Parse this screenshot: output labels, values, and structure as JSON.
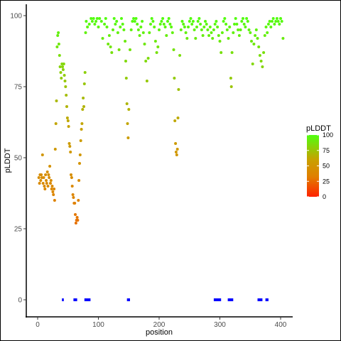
{
  "chart_data": {
    "type": "scatter",
    "xlabel": "position",
    "ylabel": "pLDDT",
    "xlim": [
      -10,
      412
    ],
    "ylim": [
      -5,
      102
    ],
    "xticks": [
      0,
      100,
      200,
      300,
      400
    ],
    "yticks": [
      0,
      25,
      50,
      75,
      100
    ],
    "grid": false,
    "legend": {
      "title": "pLDDT",
      "placement": "right",
      "ticks": [
        0,
        25,
        50,
        75,
        100
      ],
      "gradient": [
        "#ff2200",
        "#e08000",
        "#c8a000",
        "#50ff10"
      ]
    },
    "points_x_y": [
      [
        2,
        43
      ],
      [
        3,
        41
      ],
      [
        4,
        44
      ],
      [
        5,
        42
      ],
      [
        6,
        44
      ],
      [
        7,
        43
      ],
      [
        8,
        51
      ],
      [
        9,
        41
      ],
      [
        10,
        43
      ],
      [
        11,
        40
      ],
      [
        12,
        39
      ],
      [
        13,
        44
      ],
      [
        14,
        42
      ],
      [
        15,
        41
      ],
      [
        16,
        45
      ],
      [
        17,
        40
      ],
      [
        18,
        44
      ],
      [
        19,
        43
      ],
      [
        20,
        47
      ],
      [
        21,
        41
      ],
      [
        22,
        42
      ],
      [
        23,
        39
      ],
      [
        24,
        40
      ],
      [
        25,
        38
      ],
      [
        26,
        37
      ],
      [
        27,
        39
      ],
      [
        28,
        35
      ],
      [
        29,
        53
      ],
      [
        30,
        62
      ],
      [
        31,
        70
      ],
      [
        32,
        89
      ],
      [
        33,
        93
      ],
      [
        34,
        94
      ],
      [
        35,
        90
      ],
      [
        36,
        86
      ],
      [
        37,
        82
      ],
      [
        38,
        80
      ],
      [
        39,
        78
      ],
      [
        40,
        83
      ],
      [
        41,
        82
      ],
      [
        42,
        81
      ],
      [
        43,
        83
      ],
      [
        44,
        79
      ],
      [
        45,
        77
      ],
      [
        46,
        75
      ],
      [
        47,
        72
      ],
      [
        48,
        68
      ],
      [
        49,
        64
      ],
      [
        50,
        63
      ],
      [
        51,
        61
      ],
      [
        52,
        55
      ],
      [
        53,
        54
      ],
      [
        54,
        52
      ],
      [
        55,
        44
      ],
      [
        56,
        43
      ],
      [
        57,
        40
      ],
      [
        58,
        37
      ],
      [
        59,
        36
      ],
      [
        60,
        34
      ],
      [
        61,
        34
      ],
      [
        62,
        30
      ],
      [
        63,
        27
      ],
      [
        64,
        28
      ],
      [
        65,
        29
      ],
      [
        66,
        28
      ],
      [
        67,
        35
      ],
      [
        68,
        42
      ],
      [
        69,
        48
      ],
      [
        70,
        51
      ],
      [
        71,
        56
      ],
      [
        72,
        60
      ],
      [
        73,
        62
      ],
      [
        74,
        67
      ],
      [
        75,
        71
      ],
      [
        76,
        68
      ],
      [
        77,
        76
      ],
      [
        78,
        80
      ],
      [
        79,
        94
      ],
      [
        80,
        98
      ],
      [
        82,
        96
      ],
      [
        85,
        97
      ],
      [
        88,
        99
      ],
      [
        90,
        98
      ],
      [
        92,
        99
      ],
      [
        94,
        97
      ],
      [
        96,
        98
      ],
      [
        98,
        99
      ],
      [
        100,
        96
      ],
      [
        102,
        99
      ],
      [
        105,
        98
      ],
      [
        107,
        92
      ],
      [
        110,
        97
      ],
      [
        112,
        99
      ],
      [
        114,
        96
      ],
      [
        116,
        90
      ],
      [
        118,
        93
      ],
      [
        120,
        89
      ],
      [
        122,
        87
      ],
      [
        124,
        95
      ],
      [
        126,
        99
      ],
      [
        128,
        97
      ],
      [
        130,
        98
      ],
      [
        132,
        94
      ],
      [
        134,
        88
      ],
      [
        136,
        96
      ],
      [
        138,
        99
      ],
      [
        140,
        97
      ],
      [
        142,
        95
      ],
      [
        144,
        91
      ],
      [
        145,
        84
      ],
      [
        146,
        78
      ],
      [
        147,
        69
      ],
      [
        148,
        62
      ],
      [
        149,
        57
      ],
      [
        150,
        67
      ],
      [
        152,
        88
      ],
      [
        154,
        95
      ],
      [
        156,
        98
      ],
      [
        158,
        99
      ],
      [
        160,
        98
      ],
      [
        162,
        99
      ],
      [
        164,
        97
      ],
      [
        166,
        95
      ],
      [
        168,
        93
      ],
      [
        170,
        96
      ],
      [
        172,
        98
      ],
      [
        174,
        94
      ],
      [
        176,
        90
      ],
      [
        178,
        84
      ],
      [
        180,
        77
      ],
      [
        182,
        85
      ],
      [
        184,
        94
      ],
      [
        186,
        97
      ],
      [
        188,
        99
      ],
      [
        190,
        98
      ],
      [
        192,
        96
      ],
      [
        194,
        91
      ],
      [
        196,
        87
      ],
      [
        198,
        89
      ],
      [
        200,
        95
      ],
      [
        202,
        97
      ],
      [
        204,
        98
      ],
      [
        206,
        99
      ],
      [
        208,
        97
      ],
      [
        210,
        96
      ],
      [
        212,
        93
      ],
      [
        214,
        98
      ],
      [
        216,
        99
      ],
      [
        218,
        97
      ],
      [
        220,
        96
      ],
      [
        222,
        94
      ],
      [
        224,
        88
      ],
      [
        225,
        78
      ],
      [
        226,
        63
      ],
      [
        227,
        55
      ],
      [
        228,
        52
      ],
      [
        229,
        51
      ],
      [
        230,
        53
      ],
      [
        231,
        64
      ],
      [
        232,
        74
      ],
      [
        234,
        86
      ],
      [
        236,
        95
      ],
      [
        238,
        98
      ],
      [
        240,
        97
      ],
      [
        242,
        96
      ],
      [
        244,
        94
      ],
      [
        246,
        92
      ],
      [
        248,
        96
      ],
      [
        250,
        98
      ],
      [
        252,
        99
      ],
      [
        254,
        97
      ],
      [
        256,
        98
      ],
      [
        258,
        95
      ],
      [
        260,
        92
      ],
      [
        262,
        96
      ],
      [
        264,
        98
      ],
      [
        266,
        99
      ],
      [
        268,
        97
      ],
      [
        270,
        95
      ],
      [
        272,
        93
      ],
      [
        274,
        96
      ],
      [
        276,
        98
      ],
      [
        278,
        97
      ],
      [
        280,
        95
      ],
      [
        282,
        93
      ],
      [
        284,
        96
      ],
      [
        286,
        94
      ],
      [
        288,
        92
      ],
      [
        290,
        95
      ],
      [
        292,
        97
      ],
      [
        294,
        98
      ],
      [
        296,
        96
      ],
      [
        298,
        93
      ],
      [
        300,
        91
      ],
      [
        302,
        87
      ],
      [
        304,
        94
      ],
      [
        306,
        98
      ],
      [
        308,
        99
      ],
      [
        310,
        97
      ],
      [
        312,
        95
      ],
      [
        314,
        92
      ],
      [
        316,
        96
      ],
      [
        318,
        78
      ],
      [
        319,
        75
      ],
      [
        320,
        87
      ],
      [
        322,
        94
      ],
      [
        324,
        97
      ],
      [
        326,
        99
      ],
      [
        328,
        97
      ],
      [
        330,
        95
      ],
      [
        332,
        93
      ],
      [
        334,
        95
      ],
      [
        336,
        98
      ],
      [
        338,
        99
      ],
      [
        340,
        97
      ],
      [
        342,
        96
      ],
      [
        344,
        99
      ],
      [
        346,
        98
      ],
      [
        348,
        95
      ],
      [
        350,
        94
      ],
      [
        352,
        91
      ],
      [
        354,
        83
      ],
      [
        356,
        90
      ],
      [
        358,
        93
      ],
      [
        360,
        95
      ],
      [
        362,
        92
      ],
      [
        364,
        89
      ],
      [
        366,
        86
      ],
      [
        368,
        84
      ],
      [
        370,
        82
      ],
      [
        372,
        87
      ],
      [
        374,
        93
      ],
      [
        376,
        96
      ],
      [
        378,
        94
      ],
      [
        380,
        97
      ],
      [
        382,
        98
      ],
      [
        384,
        96
      ],
      [
        386,
        98
      ],
      [
        388,
        99
      ],
      [
        390,
        97
      ],
      [
        392,
        98
      ],
      [
        394,
        99
      ],
      [
        396,
        98
      ],
      [
        398,
        97
      ],
      [
        400,
        99
      ],
      [
        402,
        98
      ],
      [
        404,
        92
      ]
    ],
    "blue_segments_x": [
      [
        40,
        43
      ],
      [
        59,
        65
      ],
      [
        77,
        87
      ],
      [
        147,
        152
      ],
      [
        290,
        302
      ],
      [
        313,
        322
      ],
      [
        362,
        370
      ],
      [
        375,
        380
      ]
    ],
    "blue_segments_y": 0,
    "blue_color": "#0000ff"
  }
}
